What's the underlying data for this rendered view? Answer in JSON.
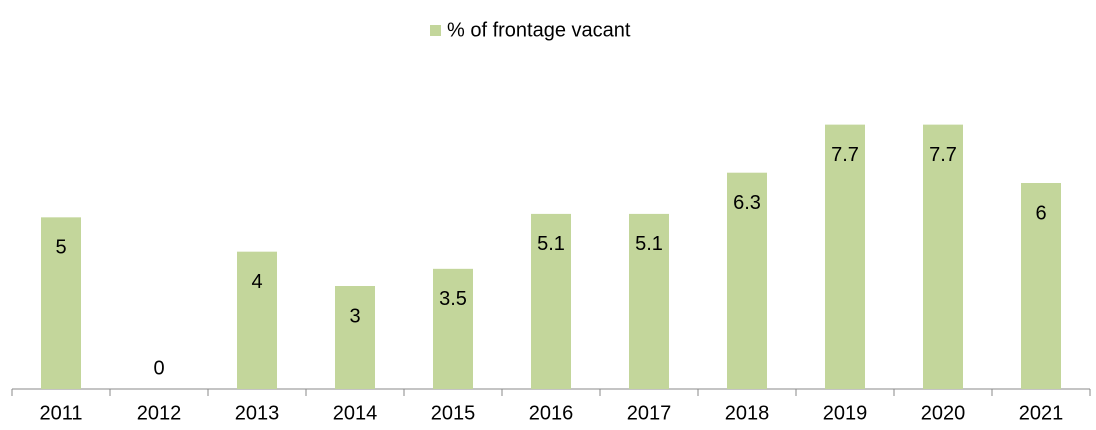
{
  "chart_data": {
    "type": "bar",
    "categories": [
      "2011",
      "2012",
      "2013",
      "2014",
      "2015",
      "2016",
      "2017",
      "2018",
      "2019",
      "2020",
      "2021"
    ],
    "series": [
      {
        "name": "% of frontage vacant",
        "color": "#c3d69b",
        "values": [
          5,
          0,
          4,
          3,
          3.5,
          5.1,
          5.1,
          6.3,
          7.7,
          7.7,
          6
        ]
      }
    ],
    "ylim": [
      0,
      9
    ],
    "legend": "top"
  }
}
